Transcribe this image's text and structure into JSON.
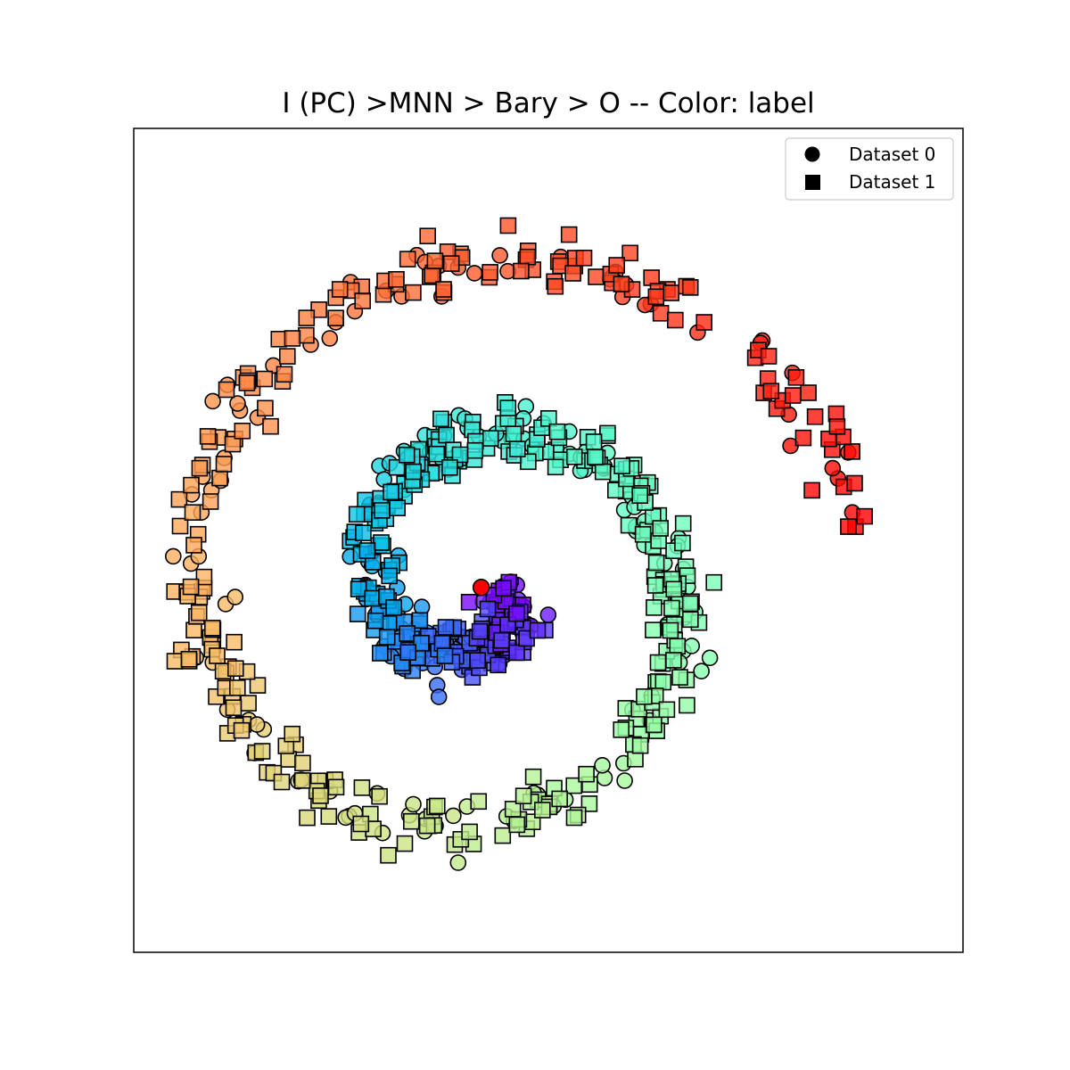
{
  "chart_data": {
    "type": "scatter",
    "title": "I (PC) >MNN > Bary > O -- Color: label",
    "xlabel": "",
    "ylabel": "",
    "axes_ticks": false,
    "grid": false,
    "legend_placement": "top-right",
    "color_by": "label",
    "colormap": "rainbow",
    "xlim": [
      -1.05,
      1.05
    ],
    "ylim": [
      -1.05,
      1.05
    ],
    "legend": [
      {
        "label": "Dataset 0",
        "marker": "circle"
      },
      {
        "label": "Dataset 1",
        "marker": "square"
      }
    ],
    "spiral_model": {
      "description_values": "Points lie along an Archimedean-like spiral; label runs 0..1 from the inner end (purple) to the outer end (red)",
      "center": [
        -0.17,
        -0.12
      ],
      "theta_start_deg": -20,
      "theta_end_deg": -710,
      "radius_start": 0.07,
      "radius_end": 0.94,
      "noise": 0.035
    },
    "series": [
      {
        "name": "Dataset 0",
        "marker": "circle",
        "count": 220,
        "label_range": [
          0,
          1
        ],
        "sampling_seed": 11
      },
      {
        "name": "Dataset 1",
        "marker": "square",
        "count": 520,
        "label_range": [
          0,
          1
        ],
        "sampling_seed": 29
      }
    ],
    "highlight_point": {
      "x": -0.17,
      "y": -0.12,
      "color": "#ff0000",
      "marker": "circle"
    }
  },
  "colors": {
    "axes_edge": "#000000",
    "marker_edge": "#000000",
    "highlight": "#ff0000"
  }
}
